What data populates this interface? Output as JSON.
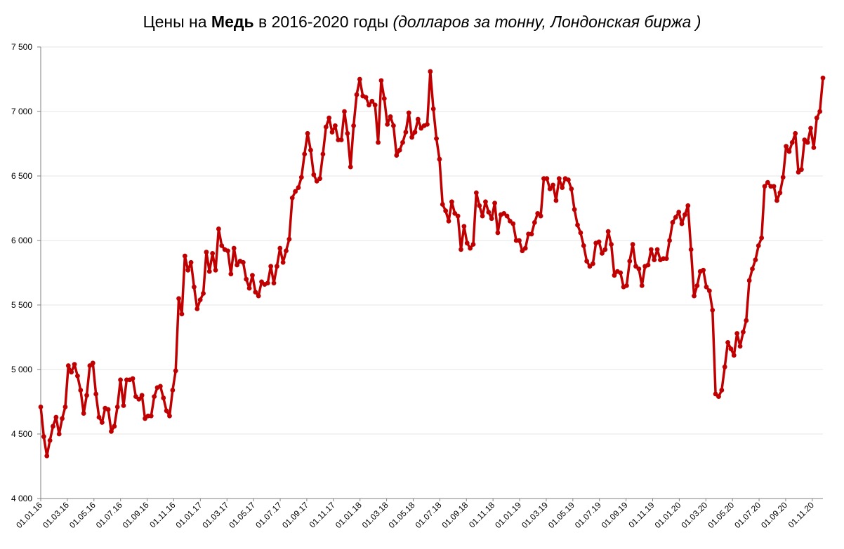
{
  "title": {
    "prefix": "Цены на ",
    "bold": "Медь",
    "middle": " в 2016-2020 годы ",
    "italic": "(долларов за тонну, Лондонская биржа )"
  },
  "colors": {
    "line": "#c00000",
    "grid": "#e6e6e6",
    "axis": "#808080"
  },
  "chart_data": {
    "type": "line",
    "title": "Цены на Медь в 2016-2020 годы (долларов за тонну, Лондонская биржа )",
    "xlabel": "",
    "ylabel": "",
    "ylim": [
      4000,
      7500
    ],
    "y_ticks": [
      4000,
      4500,
      5000,
      5500,
      6000,
      6500,
      7000,
      7500
    ],
    "y_tick_labels": [
      "4 000",
      "4 500",
      "5 000",
      "5 500",
      "6 000",
      "6 500",
      "7 000",
      "7 500"
    ],
    "x_tick_labels": [
      "01.01.16",
      "01.03.16",
      "01.05.16",
      "01.07.16",
      "01.09.16",
      "01.11.16",
      "01.01.17",
      "01.03.17",
      "01.05.17",
      "01.07.17",
      "01.09.17",
      "01.11.17",
      "01.01.18",
      "01.03.18",
      "01.05.18",
      "01.07.18",
      "01.09.18",
      "01.11.18",
      "01.01.19",
      "01.03.19",
      "01.05.19",
      "01.07.19",
      "01.09.19",
      "01.11.19",
      "01.01.20",
      "01.03.20",
      "01.05.20",
      "01.07.20",
      "01.09.20",
      "01.11.20"
    ],
    "grid": true,
    "legend": "none",
    "series": [
      {
        "values": [
          4710,
          4480,
          4330,
          4450,
          4560,
          4630,
          4500,
          4620,
          4710,
          5030,
          4980,
          5040,
          4950,
          4840,
          4660,
          4800,
          5030,
          5050,
          4810,
          4630,
          4590,
          4700,
          4690,
          4520,
          4560,
          4710,
          4920,
          4720,
          4920,
          4920,
          4930,
          4790,
          4770,
          4800,
          4620,
          4640,
          4640,
          4790,
          4860,
          4870,
          4780,
          4680,
          4640,
          4840,
          4990,
          5550,
          5430,
          5880,
          5770,
          5830,
          5640,
          5470,
          5540,
          5590,
          5910,
          5760,
          5900,
          5770,
          6090,
          5960,
          5930,
          5920,
          5740,
          5940,
          5810,
          5840,
          5830,
          5700,
          5630,
          5730,
          5600,
          5570,
          5680,
          5660,
          5670,
          5800,
          5670,
          5800,
          5940,
          5830,
          5920,
          6010,
          6330,
          6380,
          6410,
          6490,
          6670,
          6830,
          6700,
          6510,
          6460,
          6480,
          6670,
          6880,
          6950,
          6840,
          6890,
          6780,
          6780,
          7000,
          6830,
          6570,
          6890,
          7130,
          7250,
          7120,
          7110,
          7050,
          7080,
          7050,
          6760,
          7240,
          7100,
          6900,
          6960,
          6890,
          6660,
          6700,
          6760,
          6840,
          6990,
          6800,
          6840,
          6940,
          6870,
          6890,
          6900,
          7310,
          7020,
          6790,
          6630,
          6280,
          6230,
          6150,
          6300,
          6210,
          6190,
          5930,
          6110,
          5980,
          5940,
          5970,
          6370,
          6270,
          6190,
          6300,
          6220,
          6170,
          6290,
          6060,
          6200,
          6210,
          6190,
          6150,
          6130,
          6000,
          6000,
          5920,
          5940,
          6050,
          6050,
          6140,
          6210,
          6190,
          6480,
          6480,
          6400,
          6430,
          6310,
          6480,
          6410,
          6480,
          6470,
          6400,
          6240,
          6120,
          6060,
          5960,
          5840,
          5800,
          5820,
          5980,
          5990,
          5900,
          5930,
          6070,
          5970,
          5730,
          5760,
          5750,
          5640,
          5650,
          5840,
          5970,
          5800,
          5780,
          5650,
          5800,
          5810,
          5930,
          5850,
          5930,
          5850,
          5860,
          5860,
          6000,
          6140,
          6180,
          6220,
          6130,
          6200,
          6270,
          5930,
          5570,
          5650,
          5760,
          5770,
          5640,
          5610,
          5460,
          4810,
          4790,
          4840,
          5020,
          5210,
          5160,
          5110,
          5280,
          5180,
          5290,
          5380,
          5690,
          5780,
          5850,
          5960,
          6020,
          6420,
          6450,
          6420,
          6420,
          6310,
          6370,
          6490,
          6730,
          6690,
          6760,
          6830,
          6530,
          6550,
          6780,
          6760,
          6870,
          6720,
          6950,
          7000,
          7260
        ]
      }
    ]
  }
}
